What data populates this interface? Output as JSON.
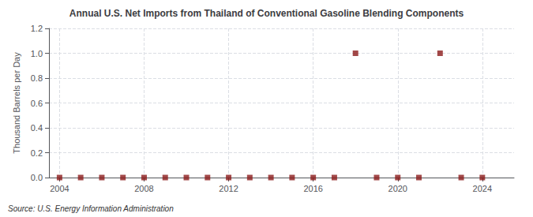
{
  "chart_data": {
    "type": "scatter",
    "title": "Annual U.S. Net Imports from Thailand of Conventional Gasoline Blending Components",
    "ylabel": "Thousand Barrels per Day",
    "source": "Source: U.S. Energy Information Administration",
    "x": [
      2004,
      2005,
      2006,
      2007,
      2008,
      2009,
      2010,
      2011,
      2012,
      2013,
      2014,
      2015,
      2016,
      2017,
      2018,
      2019,
      2020,
      2021,
      2022,
      2023,
      2024
    ],
    "values": [
      0,
      0,
      0,
      0,
      0,
      0,
      0,
      0,
      0,
      0,
      0,
      0,
      0,
      0,
      1.0,
      0,
      0,
      0,
      1.0,
      0,
      0
    ],
    "color": "#8b1a1a",
    "marker": "square",
    "xlim": [
      2003.5,
      2025.5
    ],
    "xticks": [
      2004,
      2008,
      2012,
      2016,
      2020,
      2024
    ],
    "ylim": [
      0.0,
      1.2
    ],
    "yticks": [
      {
        "value": 0,
        "label": "0.0"
      },
      0.2,
      0.4,
      0.6,
      0.8,
      {
        "value": 1,
        "label": "1.0"
      },
      1.2
    ],
    "grid": true
  }
}
